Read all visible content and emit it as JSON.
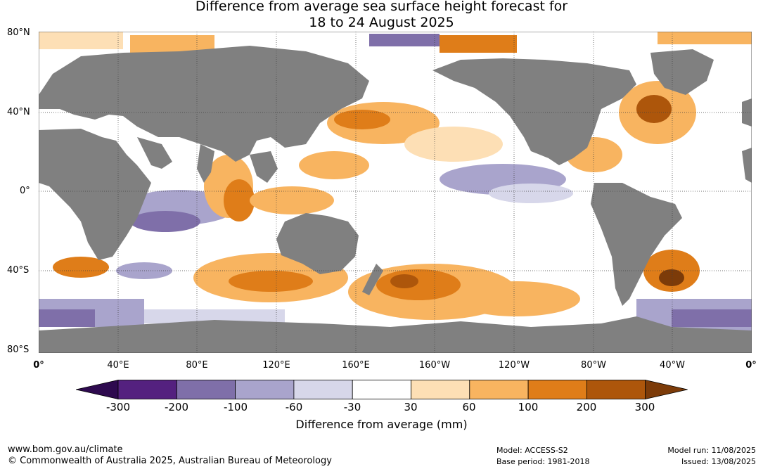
{
  "title": {
    "line1": "Difference from average sea surface height forecast for",
    "line2": "18 to 24 August 2025"
  },
  "axes": {
    "lat_labels": [
      "80°N",
      "40°N",
      "0°",
      "40°S",
      "80°S"
    ],
    "lon_labels": [
      "0°",
      "40°E",
      "80°E",
      "120°E",
      "160°E",
      "160°W",
      "120°W",
      "80°W",
      "40°W",
      "0°"
    ]
  },
  "colorbar": {
    "title": "Difference from average (mm)",
    "ticks": [
      "-300",
      "-200",
      "-100",
      "-60",
      "-30",
      "30",
      "60",
      "100",
      "200",
      "300"
    ],
    "colors": [
      "#2e0a4f",
      "#54217f",
      "#7f6fa9",
      "#a9a4cc",
      "#d7d7ea",
      "#ffffff",
      "#fddfb5",
      "#f8b460",
      "#df7d19",
      "#ad560b",
      "#7c3b09"
    ]
  },
  "land_color": "#808080",
  "footer": {
    "website": "www.bom.gov.au/climate",
    "copyright": "© Commonwealth of Australia 2025, Australian Bureau of Meteorology",
    "model": "Model: ACCESS-S2",
    "base_period": "Base period: 1981-2018",
    "model_run": "Model run: 11/08/2025",
    "issued": "Issued: 13/08/2025"
  }
}
